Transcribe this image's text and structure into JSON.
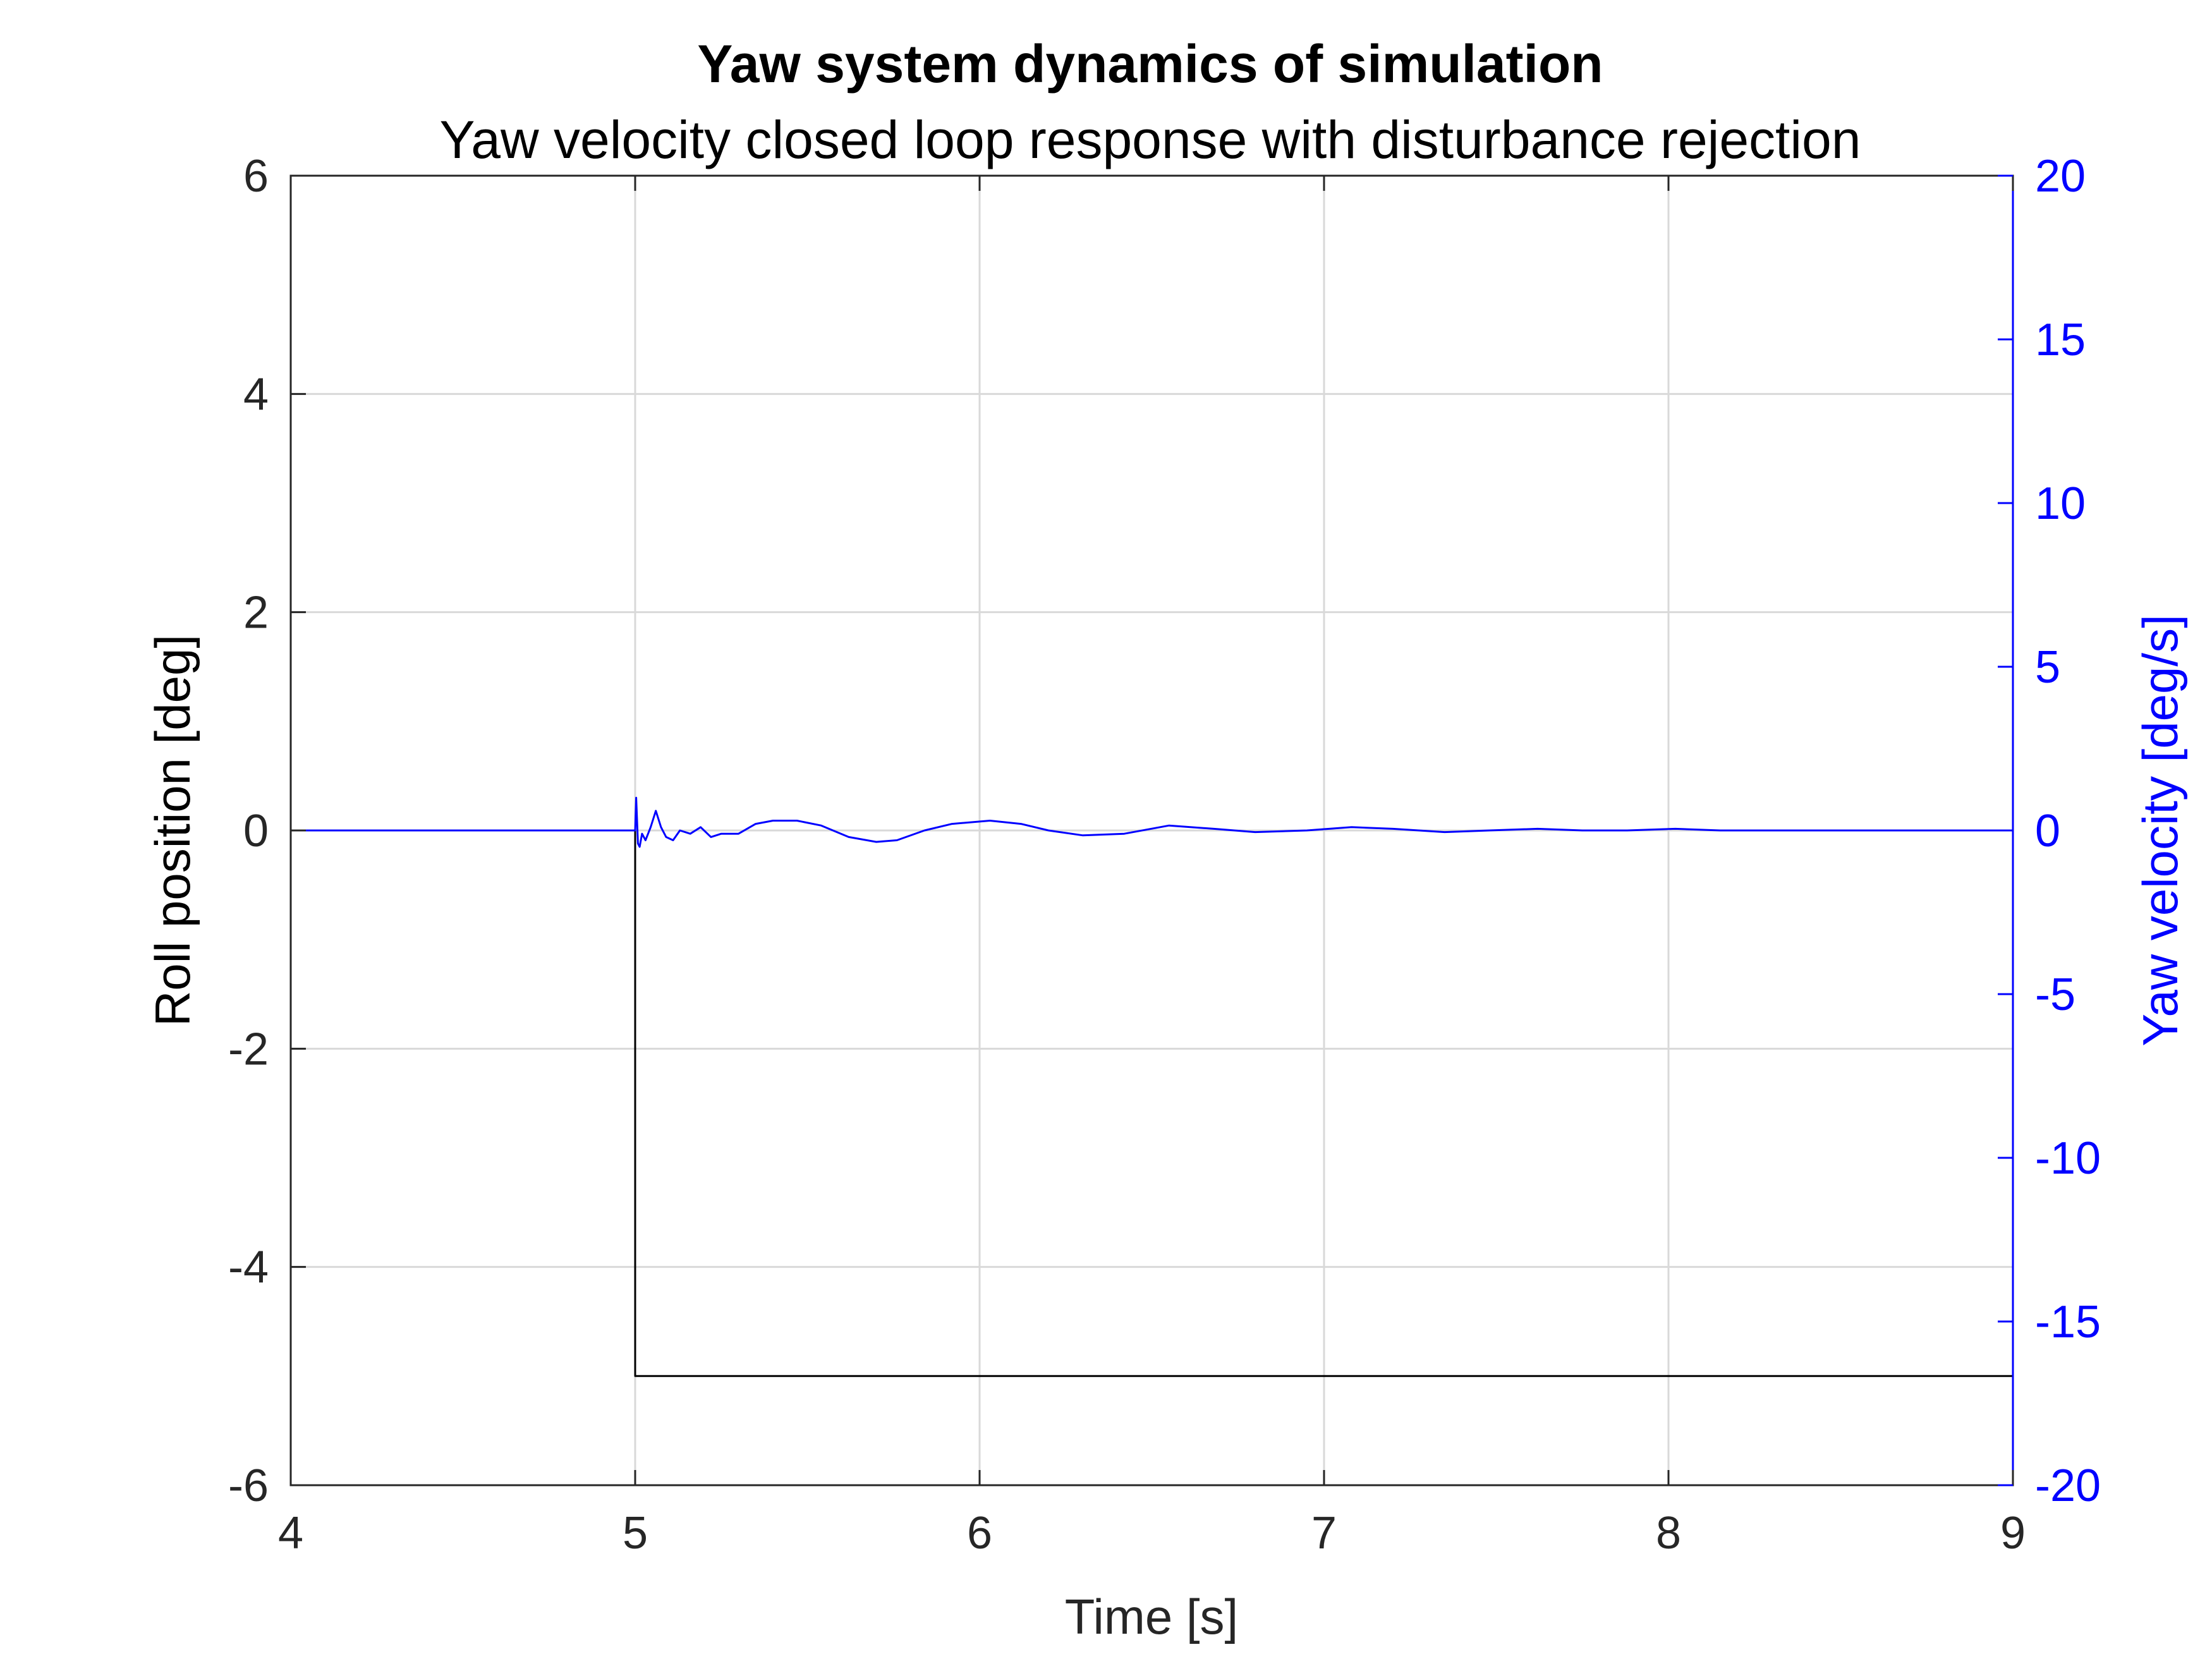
{
  "chart_data": {
    "type": "line",
    "title": "Yaw system dynamics of simulation",
    "subtitle": "Yaw velocity closed loop response with disturbance rejection",
    "xlabel": "Time [s]",
    "ylabel_left": "Roll position [deg]",
    "ylabel_right": "Yaw velocity [deg/s]",
    "xlim": [
      4,
      9
    ],
    "ylim_left": [
      -6,
      6
    ],
    "ylim_right": [
      -20,
      20
    ],
    "x_ticks": [
      "4",
      "5",
      "6",
      "7",
      "8",
      "9"
    ],
    "y_ticks_left": [
      "-6",
      "-4",
      "-2",
      "0",
      "2",
      "4",
      "6"
    ],
    "y_ticks_right": [
      "-20",
      "-15",
      "-10",
      "-5",
      "0",
      "5",
      "10",
      "15",
      "20"
    ],
    "grid": true,
    "series": [
      {
        "axis": "left",
        "color": "#000000",
        "x": [
          4,
          5,
          5,
          9
        ],
        "y": [
          0,
          0,
          -5,
          -5
        ]
      },
      {
        "axis": "right",
        "color": "#0000ff",
        "x": [
          4,
          5,
          5.003,
          5.008,
          5.013,
          5.02,
          5.03,
          5.045,
          5.06,
          5.075,
          5.09,
          5.11,
          5.13,
          5.16,
          5.19,
          5.22,
          5.25,
          5.3,
          5.35,
          5.4,
          5.47,
          5.54,
          5.62,
          5.7,
          5.76,
          5.84,
          5.92,
          6.03,
          6.12,
          6.2,
          6.3,
          6.42,
          6.55,
          6.68,
          6.8,
          6.95,
          7.08,
          7.2,
          7.35,
          7.48,
          7.62,
          7.75,
          7.88,
          8.02,
          8.15,
          8.3,
          8.42,
          8.55,
          8.68,
          8.8,
          8.93,
          9
        ],
        "y": [
          0,
          0,
          1.0,
          -0.4,
          -0.5,
          -0.1,
          -0.3,
          0.1,
          0.6,
          0.1,
          -0.2,
          -0.3,
          0.0,
          -0.1,
          0.1,
          -0.2,
          -0.1,
          -0.1,
          0.2,
          0.3,
          0.3,
          0.15,
          -0.2,
          -0.35,
          -0.3,
          0.0,
          0.2,
          0.3,
          0.2,
          0.0,
          -0.15,
          -0.1,
          0.15,
          0.05,
          -0.05,
          0.0,
          0.1,
          0.05,
          -0.05,
          0.0,
          0.05,
          0.0,
          0.0,
          0.05,
          0.0,
          0.0,
          0.0,
          0.0,
          0.0,
          0.0,
          0.0,
          0.0
        ]
      }
    ]
  }
}
